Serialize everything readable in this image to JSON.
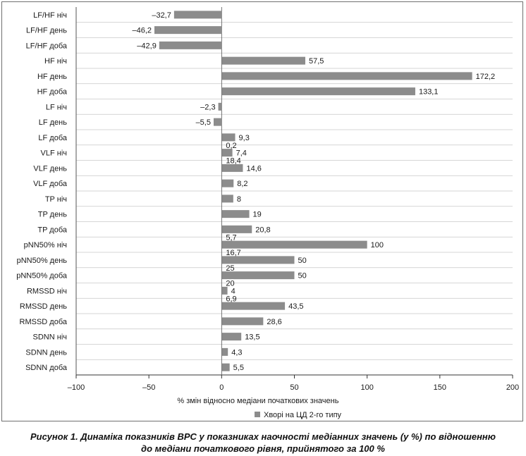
{
  "chart_data": {
    "type": "bar",
    "orientation": "horizontal",
    "categories": [
      "LF/HF ніч",
      "LF/HF день",
      "LF/HF доба",
      "HF ніч",
      "HF день",
      "HF доба",
      "LF ніч",
      "LF день",
      "LF доба",
      "VLF ніч",
      "VLF день",
      "VLF доба",
      "TP ніч",
      "TP день",
      "TP доба",
      "pNN50% ніч",
      "pNN50% день",
      "pNN50% доба",
      "RMSSD ніч",
      "RMSSD день",
      "RMSSD доба",
      "SDNN ніч",
      "SDNN день",
      "SDNN доба"
    ],
    "values": [
      -32.7,
      -46.2,
      -42.9,
      57.5,
      172.2,
      133.1,
      -2.3,
      -5.5,
      9.3,
      7.4,
      14.6,
      8.2,
      8,
      19,
      20.8,
      100,
      50,
      50,
      4,
      43.5,
      28.6,
      13.5,
      4.3,
      5.5
    ],
    "value_labels": [
      "–32,7",
      "–46,2",
      "–42,9",
      "57,5",
      "172,2",
      "133,1",
      "–2,3",
      "–5,5",
      "9,3",
      "7,4",
      "14,6",
      "8,2",
      "8",
      "19",
      "20,8",
      "100",
      "50",
      "50",
      "4",
      "43,5",
      "28,6",
      "13,5",
      "4,3",
      "5,5"
    ],
    "extra_labels": [
      {
        "text": "0,2",
        "category": "LF доба"
      },
      {
        "text": "18,4",
        "category": "VLF ніч"
      },
      {
        "text": "5,7",
        "category": "TP доба"
      },
      {
        "text": "16,7",
        "category": "pNN50% ніч"
      },
      {
        "text": "25",
        "category": "pNN50% день"
      },
      {
        "text": "20",
        "category": "pNN50% доба"
      },
      {
        "text": "6,9",
        "category": "RMSSD ніч"
      }
    ],
    "xlim": [
      -100,
      200
    ],
    "xticks": [
      -100,
      -50,
      0,
      50,
      100,
      150,
      200
    ],
    "xtick_labels": [
      "–100",
      "–50",
      "0",
      "50",
      "100",
      "150",
      "200"
    ],
    "xlabel": "% змін відносно медіани початкових значень",
    "ylabel": "",
    "title": "",
    "legend": {
      "label": "Хворі на ЦД 2-го типу",
      "position": "bottom"
    },
    "bar_color": "#8c8c8c",
    "grid": "horizontal category separators"
  },
  "caption": {
    "line1": "Рисунок 1. Динаміка показників ВРС у показниках наочності медіанних значень (у %) по відношенню",
    "line2": "до медіани початкового рівня, прийнятого за 100 %"
  }
}
